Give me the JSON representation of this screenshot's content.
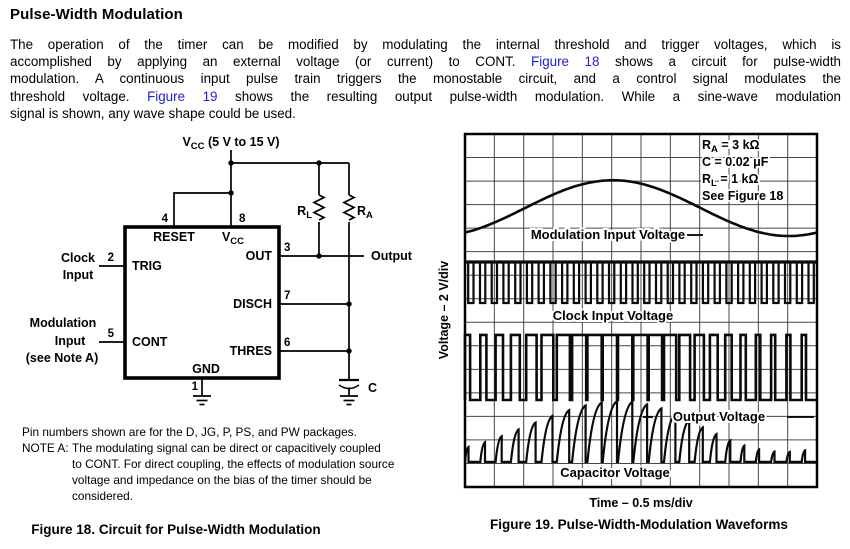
{
  "page": {
    "title": "Pulse-Width Modulation",
    "link_color": "#2121d8",
    "paragraph_lines": [
      [
        {
          "t": "The operation of the timer can be modified by modulating the internal threshold and trigger voltages, which is"
        }
      ],
      [
        {
          "t": "accomplished by applying an external voltage (or current) to CONT. "
        },
        {
          "t": "Figure 18",
          "link": true,
          "name": "figure18-link"
        },
        {
          "t": " shows a circuit for pulse-width"
        }
      ],
      [
        {
          "t": "modulation. A continuous input pulse train triggers the monostable circuit, and a control signal modulates the"
        }
      ],
      [
        {
          "t": "threshold voltage. "
        },
        {
          "t": "Figure 19",
          "link": true,
          "name": "figure19-link"
        },
        {
          "t": " shows the resulting output pulse-width modulation. While a sine-wave modulation"
        }
      ],
      [
        {
          "t": "signal is shown, any wave shape could be used."
        }
      ]
    ]
  },
  "figure18": {
    "caption": "Figure 18. Circuit for Pulse-Width Modulation",
    "supply": {
      "main": "V",
      "sub": "CC",
      "rest": " (5 V to 15 V)"
    },
    "ic": {
      "reset": "RESET",
      "vcc_main": "V",
      "vcc_sub": "CC",
      "trig": "TRIG",
      "cont": "CONT",
      "out": "OUT",
      "disch": "DISCH",
      "thres": "THRES",
      "gnd": "GND"
    },
    "pins": {
      "p1": "1",
      "p2": "2",
      "p3": "3",
      "p4": "4",
      "p5": "5",
      "p6": "6",
      "p7": "7",
      "p8": "8"
    },
    "ext": {
      "clock1": "Clock",
      "clock2": "Input",
      "mod1": "Modulation",
      "mod2": "Input",
      "mod3": "(see Note A)",
      "output": "Output",
      "rl_main": "R",
      "rl_sub": "L",
      "ra_main": "R",
      "ra_sub": "A",
      "cap": "C"
    },
    "notes": {
      "pin_note": "Pin numbers shown are for the D, JG, P, PS, and PW packages.",
      "note_a_label": "NOTE A:",
      "note_a_lines": [
        "The modulating signal can be direct or capacitively coupled",
        "to CONT. For direct coupling, the effects of modulation source",
        "voltage and impedance on the bias of the timer should be",
        "considered."
      ]
    }
  },
  "chart_data": {
    "type": "line",
    "title": "Figure 19. Pulse-Width-Modulation Waveforms",
    "xlabel": "Time – 0.5 ms/div",
    "ylabel": "Voltage – 2 V/div",
    "x_scale": "0.5 ms/div",
    "y_scale": "2 V/div",
    "grid": {
      "cols": 12,
      "rows": 15,
      "on": true
    },
    "conditions": [
      {
        "main": "R",
        "sub": "A",
        "rest": " = 3 kΩ"
      },
      {
        "main": "C",
        "sub": "",
        "rest": " = 0.02 μF"
      },
      {
        "main": "R",
        "sub": "L",
        "rest": " = 1 kΩ"
      },
      {
        "main": "See Figure 18",
        "sub": "",
        "rest": ""
      }
    ],
    "traces": [
      {
        "label": "Modulation Input Voltage",
        "kind": "sine",
        "cycles": 1,
        "peak_frac": 0.42,
        "mid_frac": 0.21,
        "amp_frac": 0.079,
        "label_pos": [
          171,
          109
        ],
        "leaders": [
          [
            250,
            105,
            266,
            105
          ]
        ]
      },
      {
        "label": "Clock Input Voltage",
        "kind": "clock",
        "periods": 30,
        "low_width_frac": 0.45,
        "top_frac": 0.3626,
        "bottom_frac": 0.4788,
        "label_pos": [
          176,
          190
        ],
        "leaders": []
      },
      {
        "label": "Output Voltage",
        "kind": "pwm",
        "periods": 23,
        "duty_mid": 0.62,
        "duty_depth": 0.36,
        "duty_min": 0.1,
        "duty_max": 0.93,
        "peak_frac": 0.42,
        "high_frac": 0.569,
        "low_frac": 0.7535,
        "label_pos": [
          282,
          291
        ],
        "leaders": [
          [
            206,
            287,
            216,
            287
          ],
          [
            350,
            287,
            377,
            287
          ]
        ]
      },
      {
        "label": "Capacitor Voltage",
        "kind": "ramps",
        "periods": 23,
        "peak_frac": 0.42,
        "base_frac": 0.929,
        "h_mid_frac": 0.1,
        "h_depth_frac": 0.072,
        "h_min_frac": 0.022,
        "label_pos": [
          178,
          347
        ],
        "leaders": []
      }
    ]
  }
}
